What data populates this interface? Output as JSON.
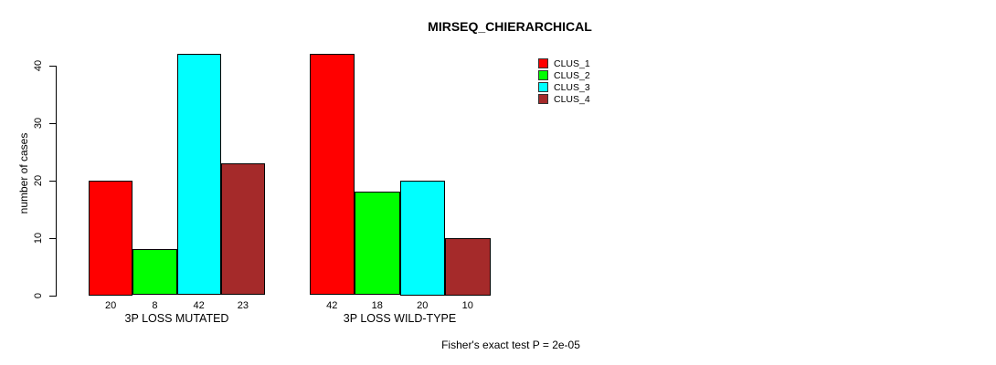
{
  "colors": {
    "background": "#ffffff",
    "axis": "#000000",
    "text": "#000000",
    "bar_border": "#000000"
  },
  "chart_data": {
    "type": "bar",
    "title": "MIRSEQ_CHIERARCHICAL",
    "ylabel": "number of cases",
    "xlabel": "",
    "categories": [
      "3P LOSS MUTATED",
      "3P LOSS WILD-TYPE"
    ],
    "series": [
      {
        "name": "CLUS_1",
        "color": "#ff0000",
        "values": [
          20,
          42
        ]
      },
      {
        "name": "CLUS_2",
        "color": "#00ff00",
        "values": [
          8,
          18
        ]
      },
      {
        "name": "CLUS_3",
        "color": "#00ffff",
        "values": [
          42,
          20
        ]
      },
      {
        "name": "CLUS_4",
        "color": "#a52a2a",
        "values": [
          23,
          10
        ]
      }
    ],
    "yticks": [
      0,
      10,
      20,
      30,
      40
    ],
    "ylim": [
      0,
      42
    ],
    "grid": false,
    "bar_value_labels_shown": true,
    "legend_position": "top-right",
    "annotation": "Fisher's exact test P = 2e-05"
  }
}
